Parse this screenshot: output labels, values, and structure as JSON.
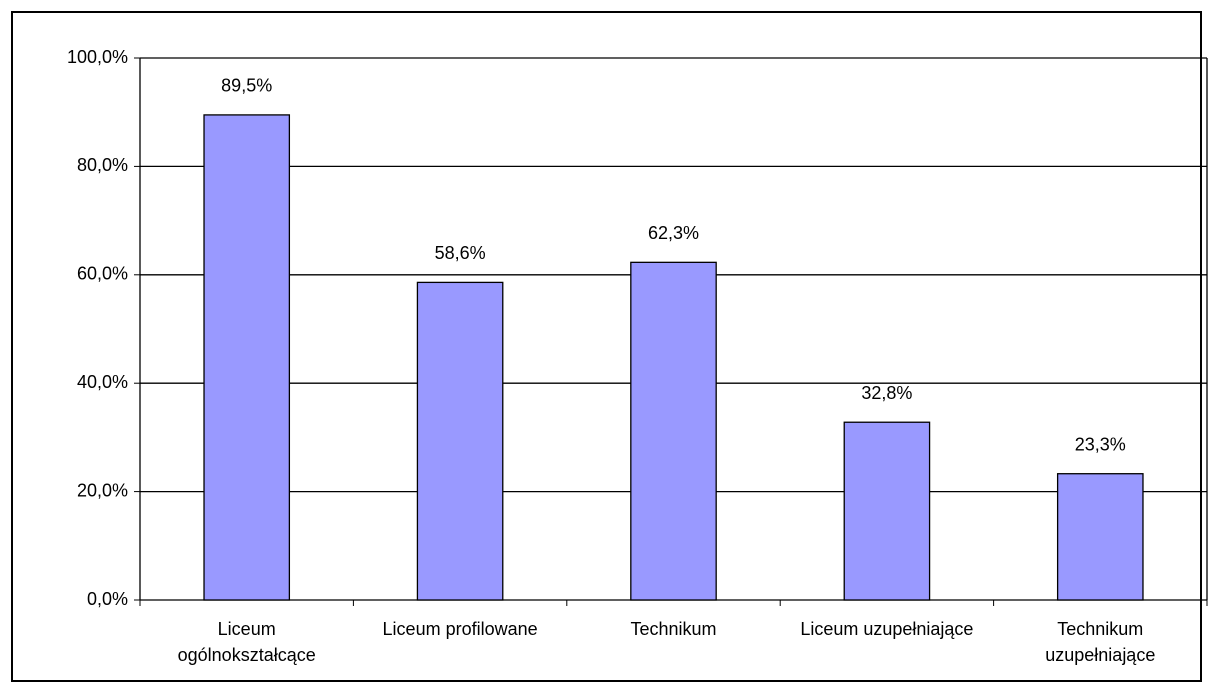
{
  "chart_data": {
    "type": "bar",
    "categories": [
      "Liceum ogólnokształcące",
      "Liceum profilowane",
      "Technikum",
      "Liceum uzupełniające",
      "Technikum uzupełniające"
    ],
    "values": [
      89.5,
      58.6,
      62.3,
      32.8,
      23.3
    ],
    "value_labels": [
      "89,5%",
      "58,6%",
      "62,3%",
      "32,8%",
      "23,3%"
    ],
    "color": "#9999ff",
    "ylim": [
      0,
      100
    ],
    "yticks": [
      {
        "value": 0,
        "label": "0,0%"
      },
      {
        "value": 20,
        "label": "20,0%"
      },
      {
        "value": 40,
        "label": "40,0%"
      },
      {
        "value": 60,
        "label": "60,0%"
      },
      {
        "value": 80,
        "label": "80,0%"
      },
      {
        "value": 100,
        "label": "100,0%"
      }
    ],
    "grid": true
  }
}
